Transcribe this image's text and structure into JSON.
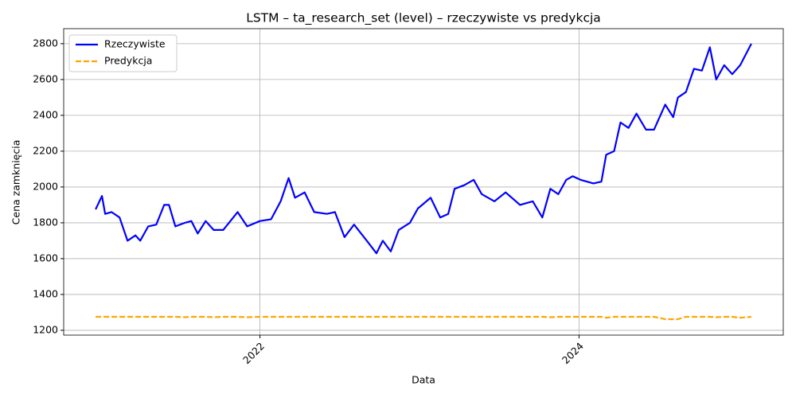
{
  "chart_data": {
    "type": "line",
    "title": "LSTM – ta_research_set (level) – rzeczywiste vs predykcja",
    "x_label": "Data",
    "y_label": "Cena zamknięcia",
    "x": [
      2020.97,
      2021.01,
      2021.03,
      2021.07,
      2021.12,
      2021.17,
      2021.22,
      2021.25,
      2021.3,
      2021.35,
      2021.4,
      2021.43,
      2021.47,
      2021.53,
      2021.57,
      2021.61,
      2021.66,
      2021.71,
      2021.77,
      2021.86,
      2021.92,
      2022.0,
      2022.07,
      2022.13,
      2022.18,
      2022.22,
      2022.28,
      2022.34,
      2022.42,
      2022.47,
      2022.53,
      2022.59,
      2022.67,
      2022.73,
      2022.77,
      2022.82,
      2022.87,
      2022.94,
      2022.99,
      2023.07,
      2023.13,
      2023.18,
      2023.22,
      2023.28,
      2023.34,
      2023.39,
      2023.47,
      2023.54,
      2023.63,
      2023.71,
      2023.77,
      2023.82,
      2023.87,
      2023.92,
      2023.96,
      2024.01,
      2024.09,
      2024.14,
      2024.17,
      2024.22,
      2024.26,
      2024.31,
      2024.36,
      2024.42,
      2024.47,
      2024.54,
      2024.59,
      2024.62,
      2024.67,
      2024.72,
      2024.77,
      2024.82,
      2024.86,
      2024.91,
      2024.96,
      2025.01,
      2025.08
    ],
    "series": [
      {
        "name": "Rzeczywiste",
        "color": "#0000ff",
        "linestyle": "solid",
        "values": [
          1875,
          1950,
          1850,
          1860,
          1830,
          1700,
          1730,
          1700,
          1780,
          1790,
          1900,
          1900,
          1780,
          1800,
          1810,
          1740,
          1810,
          1760,
          1760,
          1860,
          1780,
          1810,
          1820,
          1920,
          2050,
          1940,
          1970,
          1860,
          1850,
          1860,
          1720,
          1790,
          1700,
          1630,
          1700,
          1640,
          1760,
          1800,
          1880,
          1940,
          1830,
          1850,
          1990,
          2010,
          2040,
          1960,
          1920,
          1970,
          1900,
          1920,
          1830,
          1990,
          1960,
          2040,
          2060,
          2040,
          2020,
          2030,
          2180,
          2200,
          2360,
          2330,
          2410,
          2320,
          2320,
          2460,
          2390,
          2500,
          2530,
          2660,
          2650,
          2780,
          2600,
          2680,
          2630,
          2680,
          2800
        ]
      },
      {
        "name": "Predykcja",
        "color": "#ffa500",
        "linestyle": "dashed",
        "values": [
          1275,
          1275,
          1275,
          1275,
          1275,
          1275,
          1275,
          1275,
          1275,
          1275,
          1275,
          1275,
          1275,
          1273,
          1275,
          1275,
          1275,
          1273,
          1275,
          1275,
          1273,
          1275,
          1275,
          1275,
          1275,
          1275,
          1275,
          1275,
          1275,
          1275,
          1275,
          1275,
          1275,
          1275,
          1275,
          1275,
          1275,
          1275,
          1275,
          1275,
          1275,
          1275,
          1275,
          1275,
          1275,
          1275,
          1275,
          1275,
          1275,
          1275,
          1275,
          1273,
          1275,
          1275,
          1275,
          1275,
          1275,
          1275,
          1270,
          1275,
          1275,
          1275,
          1275,
          1275,
          1275,
          1262,
          1262,
          1262,
          1275,
          1275,
          1275,
          1275,
          1273,
          1275,
          1275,
          1270,
          1275
        ]
      }
    ],
    "xlim": [
      2020.77,
      2025.28
    ],
    "xticks": [
      2022,
      2024
    ],
    "ylim": [
      1173,
      2884
    ],
    "yticks": [
      1200,
      1400,
      1600,
      1800,
      2000,
      2200,
      2400,
      2600,
      2800
    ],
    "grid": true,
    "legend": "upper-left"
  }
}
